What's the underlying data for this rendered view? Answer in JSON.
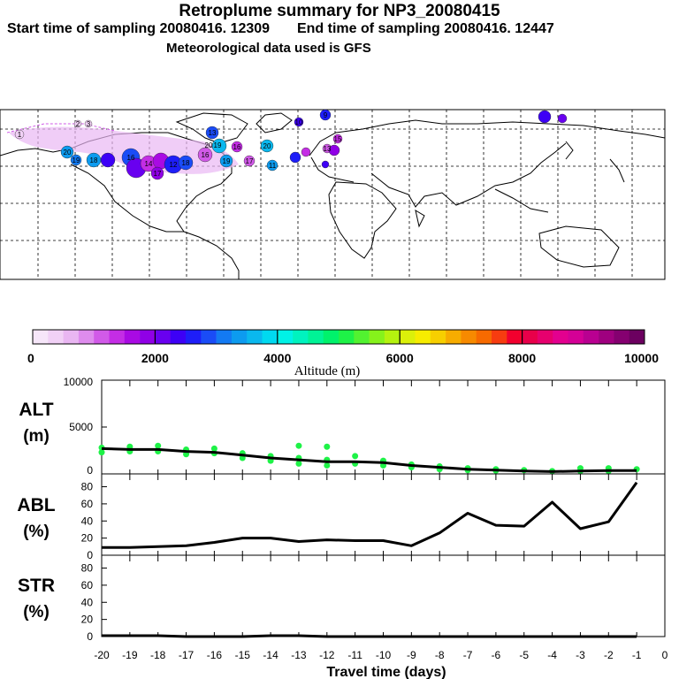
{
  "header": {
    "title": "Retroplume summary for NP3_20080415",
    "start_label": "Start time of sampling",
    "start_value": "20080416. 12309",
    "end_label": "End time of sampling",
    "end_value": "20080416. 12447",
    "met_line": "Meteorological data used is GFS"
  },
  "map": {
    "plume_labels": [
      "1",
      "2",
      "3",
      "20",
      "19",
      "18",
      "20",
      "19",
      "16",
      "18",
      "17",
      "20",
      "16",
      "19",
      "17",
      "12",
      "14",
      "16",
      "11",
      "13",
      "15",
      "13",
      "10",
      "9"
    ]
  },
  "colorbar": {
    "tick_labels": [
      "0",
      "2000",
      "4000",
      "6000",
      "8000",
      "10000"
    ],
    "label": "Altitude (m)",
    "colors": [
      "#f6e6f9",
      "#f1d1f6",
      "#e9b6f2",
      "#de8ced",
      "#d15ae8",
      "#c42de5",
      "#a90ae3",
      "#9000e6",
      "#6900f0",
      "#3d00f6",
      "#1e1ef8",
      "#1a4cf7",
      "#137af3",
      "#0d9bef",
      "#0ab8ee",
      "#00d9f0",
      "#00f2e6",
      "#00f3bf",
      "#00f396",
      "#00f26b",
      "#1ef247",
      "#52f230",
      "#86f21b",
      "#b5f20f",
      "#dbf00a",
      "#f7ec00",
      "#f7cf00",
      "#f7ac00",
      "#f78a00",
      "#f76a00",
      "#f73c10",
      "#f2002e",
      "#e8004a",
      "#e6006e",
      "#e3008f",
      "#d40096",
      "#b90091",
      "#9f007f",
      "#850070",
      "#6c0060"
    ]
  },
  "chart_data": [
    {
      "type": "line",
      "id": "alt",
      "panel_label": "ALT",
      "unit_label": "(m)",
      "x": [
        -20,
        -19,
        -18,
        -17,
        -16,
        -15,
        -14,
        -13,
        -12,
        -11,
        -10,
        -9,
        -8,
        -7,
        -6,
        -5,
        -4,
        -3,
        -2,
        -1
      ],
      "values": [
        2700,
        2600,
        2600,
        2400,
        2300,
        2000,
        1700,
        1500,
        1300,
        1300,
        1200,
        900,
        700,
        500,
        400,
        300,
        250,
        300,
        350,
        350
      ],
      "scatter_points": [
        [
          -20,
          2800
        ],
        [
          -20,
          2300
        ],
        [
          -19,
          2900
        ],
        [
          -19,
          2400
        ],
        [
          -18,
          3000
        ],
        [
          -18,
          2400
        ],
        [
          -17,
          2600
        ],
        [
          -17,
          2100
        ],
        [
          -16,
          2700
        ],
        [
          -16,
          2200
        ],
        [
          -15,
          2200
        ],
        [
          -15,
          1700
        ],
        [
          -14,
          1900
        ],
        [
          -14,
          1400
        ],
        [
          -13,
          1700
        ],
        [
          -13,
          1100
        ],
        [
          -13,
          3000
        ],
        [
          -12,
          1500
        ],
        [
          -12,
          900
        ],
        [
          -12,
          2900
        ],
        [
          -11,
          1900
        ],
        [
          -11,
          1100
        ],
        [
          -10,
          1400
        ],
        [
          -10,
          900
        ],
        [
          -9,
          1000
        ],
        [
          -9,
          700
        ],
        [
          -8,
          800
        ],
        [
          -8,
          500
        ],
        [
          -7,
          600
        ],
        [
          -7,
          400
        ],
        [
          -6,
          500
        ],
        [
          -6,
          350
        ],
        [
          -5,
          400
        ],
        [
          -4,
          300
        ],
        [
          -3,
          300
        ],
        [
          -3,
          600
        ],
        [
          -2,
          600
        ],
        [
          -2,
          300
        ],
        [
          -1,
          500
        ]
      ],
      "ylim": [
        0,
        10000
      ],
      "ytick_labels": [
        "10000",
        "5000",
        "0"
      ],
      "yticks": [
        10000,
        5000,
        0
      ]
    },
    {
      "type": "line",
      "id": "abl",
      "panel_label": "ABL",
      "unit_label": "(%)",
      "x": [
        -20,
        -19,
        -18,
        -17,
        -16,
        -15,
        -14,
        -13,
        -12,
        -11,
        -10,
        -9,
        -8,
        -7,
        -6,
        -5,
        -4,
        -3,
        -2,
        -1
      ],
      "values": [
        9,
        9,
        10,
        11,
        15,
        20,
        20,
        16,
        18,
        17,
        17,
        11,
        26,
        49,
        35,
        34,
        62,
        31,
        39,
        85
      ],
      "ylim": [
        0,
        95
      ],
      "ytick_labels": [
        "80",
        "60",
        "40",
        "20",
        "0"
      ],
      "yticks": [
        80,
        60,
        40,
        20,
        0
      ]
    },
    {
      "type": "line",
      "id": "str",
      "panel_label": "STR",
      "unit_label": "(%)",
      "x": [
        -20,
        -19,
        -18,
        -17,
        -16,
        -15,
        -14,
        -13,
        -12,
        -11,
        -10,
        -9,
        -8,
        -7,
        -6,
        -5,
        -4,
        -3,
        -2,
        -1
      ],
      "values": [
        1,
        1,
        1,
        0,
        0,
        0,
        1,
        1,
        0,
        0,
        0,
        0,
        0,
        0,
        0,
        0,
        0,
        0,
        0,
        0
      ],
      "ylim": [
        0,
        95
      ],
      "ytick_labels": [
        "80",
        "60",
        "40",
        "20",
        "0"
      ],
      "yticks": [
        80,
        60,
        40,
        20,
        0
      ]
    }
  ],
  "xaxis": {
    "tick_labels": [
      "-20",
      "-19",
      "-18",
      "-17",
      "-16",
      "-15",
      "-14",
      "-13",
      "-12",
      "-11",
      "-10",
      "-9",
      "-8",
      "-7",
      "-6",
      "-5",
      "-4",
      "-3",
      "-2",
      "-1",
      "0"
    ],
    "ticks": [
      -20,
      -19,
      -18,
      -17,
      -16,
      -15,
      -14,
      -13,
      -12,
      -11,
      -10,
      -9,
      -8,
      -7,
      -6,
      -5,
      -4,
      -3,
      -2,
      -1,
      0
    ],
    "xlabel": "Travel time (days)",
    "xlim": [
      -20,
      0
    ]
  }
}
